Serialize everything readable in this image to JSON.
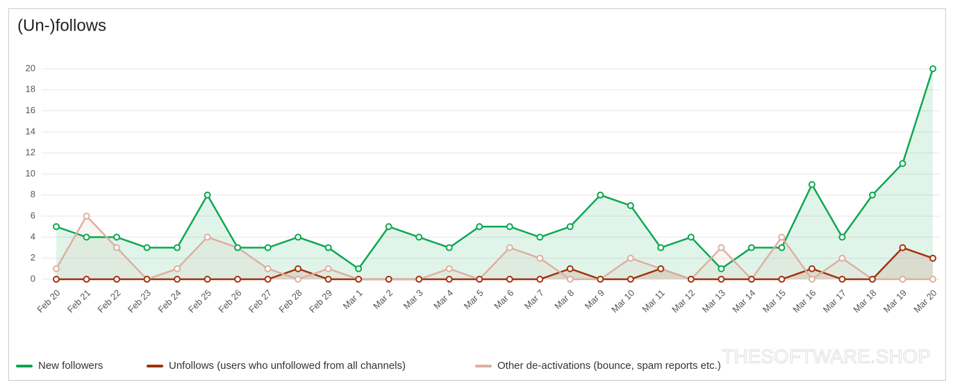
{
  "chart_data": {
    "type": "line",
    "title": "(Un-)follows",
    "categories": [
      "Feb 20",
      "Feb 21",
      "Feb 22",
      "Feb 23",
      "Feb 24",
      "Feb 25",
      "Feb 26",
      "Feb 27",
      "Feb 28",
      "Feb 29",
      "Mar 1",
      "Mar 2",
      "Mar 3",
      "Mar 4",
      "Mar 5",
      "Mar 6",
      "Mar 7",
      "Mar 8",
      "Mar 9",
      "Mar 10",
      "Mar 11",
      "Mar 12",
      "Mar 13",
      "Mar 14",
      "Mar 15",
      "Mar 16",
      "Mar 17",
      "Mar 18",
      "Mar 19",
      "Mar 20"
    ],
    "series": [
      {
        "name": "New followers",
        "color": "#0ca750",
        "values": [
          5,
          4,
          4,
          3,
          3,
          8,
          3,
          3,
          4,
          3,
          1,
          5,
          4,
          3,
          5,
          5,
          4,
          5,
          8,
          7,
          3,
          4,
          1,
          3,
          3,
          9,
          4,
          8,
          11,
          20
        ]
      },
      {
        "name": "Unfollows (users who unfollowed from all channels)",
        "color": "#a3300b",
        "values": [
          0,
          0,
          0,
          0,
          0,
          0,
          0,
          0,
          1,
          0,
          0,
          0,
          0,
          0,
          0,
          0,
          0,
          1,
          0,
          0,
          1,
          0,
          0,
          0,
          0,
          1,
          0,
          0,
          3,
          2
        ]
      },
      {
        "name": "Other de-activations (bounce, spam reports etc.)",
        "color": "#dcb0a0",
        "values": [
          1,
          6,
          3,
          0,
          1,
          4,
          3,
          1,
          0,
          1,
          0,
          0,
          0,
          1,
          0,
          3,
          2,
          0,
          0,
          2,
          1,
          0,
          3,
          0,
          4,
          0,
          2,
          0,
          0,
          0
        ]
      }
    ],
    "ylim": [
      0,
      20
    ],
    "yticks": [
      0,
      2,
      4,
      6,
      8,
      10,
      12,
      14,
      16,
      18,
      20
    ],
    "grid": true,
    "area": true,
    "legend": "bottom",
    "watermark": "THESOFTWARE.SHOP"
  }
}
